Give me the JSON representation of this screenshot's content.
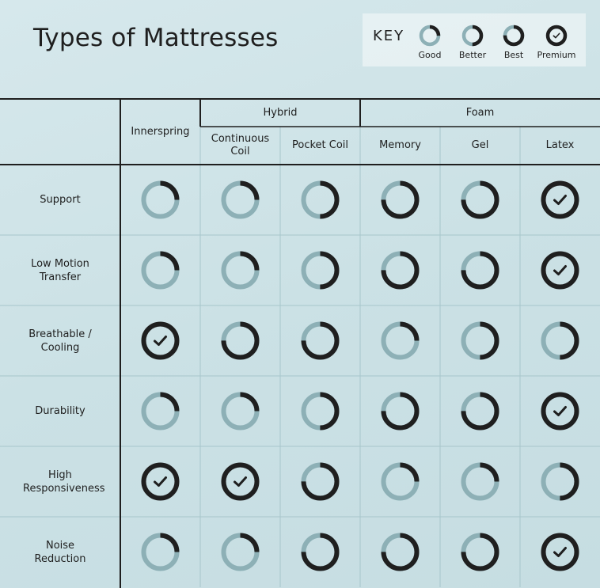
{
  "header": {
    "title": "Types of Mattresses"
  },
  "key": {
    "title": "KEY",
    "items": [
      {
        "label": "Good",
        "level": 1
      },
      {
        "label": "Better",
        "level": 2
      },
      {
        "label": "Best",
        "level": 3
      },
      {
        "label": "Premium",
        "level": 4
      }
    ]
  },
  "table": {
    "columns": [
      {
        "label": "Innerspring"
      },
      {
        "group": "Hybrid",
        "columns": [
          "Continuous Coil",
          "Pocket Coil"
        ]
      },
      {
        "group": "Foam",
        "columns": [
          "Memory",
          "Gel",
          "Latex"
        ]
      }
    ],
    "rows": [
      {
        "label": "Support",
        "ratings": [
          1,
          1,
          2,
          3,
          3,
          4
        ]
      },
      {
        "label": "Low Motion Transfer",
        "ratings": [
          1,
          1,
          2,
          3,
          3,
          4
        ]
      },
      {
        "label": "Breathable / Cooling",
        "ratings": [
          4,
          3,
          3,
          1,
          2,
          2
        ]
      },
      {
        "label": "Durability",
        "ratings": [
          1,
          1,
          2,
          3,
          3,
          4
        ]
      },
      {
        "label": "High Responsiveness",
        "ratings": [
          4,
          4,
          3,
          1,
          1,
          2
        ]
      },
      {
        "label": "Noise Reduction",
        "ratings": [
          1,
          1,
          3,
          3,
          3,
          4
        ]
      }
    ]
  }
}
